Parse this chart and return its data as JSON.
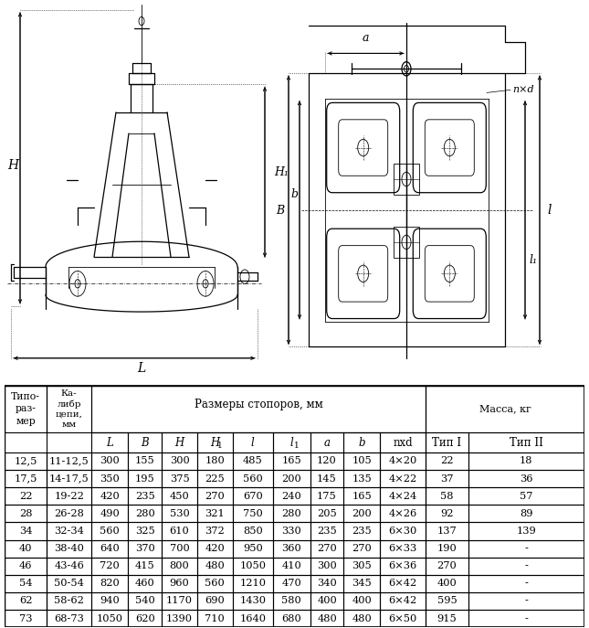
{
  "table_data": [
    [
      "12,5",
      "11-12,5",
      "300",
      "155",
      "300",
      "180",
      "485",
      "165",
      "120",
      "105",
      "4×20",
      "22",
      "18"
    ],
    [
      "17,5",
      "14-17,5",
      "350",
      "195",
      "375",
      "225",
      "560",
      "200",
      "145",
      "135",
      "4×22",
      "37",
      "36"
    ],
    [
      "22",
      "19-22",
      "420",
      "235",
      "450",
      "270",
      "670",
      "240",
      "175",
      "165",
      "4×24",
      "58",
      "57"
    ],
    [
      "28",
      "26-28",
      "490",
      "280",
      "530",
      "321",
      "750",
      "280",
      "205",
      "200",
      "4×26",
      "92",
      "89"
    ],
    [
      "34",
      "32-34",
      "560",
      "325",
      "610",
      "372",
      "850",
      "330",
      "235",
      "235",
      "6×30",
      "137",
      "139"
    ],
    [
      "40",
      "38-40",
      "640",
      "370",
      "700",
      "420",
      "950",
      "360",
      "270",
      "270",
      "6×33",
      "190",
      "-"
    ],
    [
      "46",
      "43-46",
      "720",
      "415",
      "800",
      "480",
      "1050",
      "410",
      "300",
      "305",
      "6×36",
      "270",
      "-"
    ],
    [
      "54",
      "50-54",
      "820",
      "460",
      "960",
      "560",
      "1210",
      "470",
      "340",
      "345",
      "6×42",
      "400",
      "-"
    ],
    [
      "62",
      "58-62",
      "940",
      "540",
      "1170",
      "690",
      "1430",
      "580",
      "400",
      "400",
      "6×42",
      "595",
      "-"
    ],
    [
      "73",
      "68-73",
      "1050",
      "620",
      "1390",
      "710",
      "1640",
      "680",
      "480",
      "480",
      "6×50",
      "915",
      "-"
    ]
  ],
  "bg_color": "#ffffff",
  "line_color": "#000000"
}
